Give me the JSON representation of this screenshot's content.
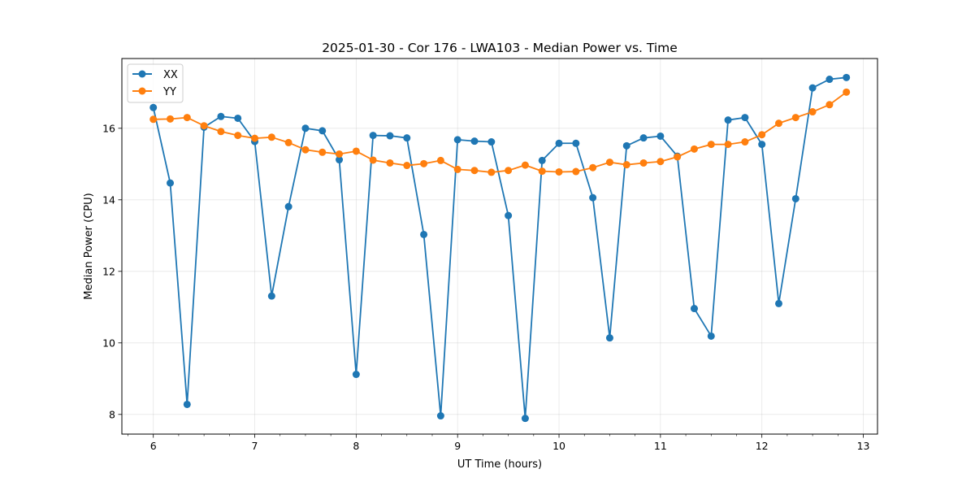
{
  "chart_data": {
    "type": "line",
    "title": "2025-01-30 - Cor 176 - LWA103 - Median Power vs. Time",
    "xlabel": "UT Time (hours)",
    "ylabel": "Median Power (CPU)",
    "xlim": [
      5.69,
      13.14
    ],
    "ylim": [
      7.45,
      17.95
    ],
    "x_ticks": [
      6,
      7,
      8,
      9,
      10,
      11,
      12,
      13
    ],
    "x_tick_labels": [
      "6",
      "7",
      "8",
      "9",
      "10",
      "11",
      "12",
      "13"
    ],
    "x_minor_step": 0.25,
    "y_ticks": [
      8,
      10,
      12,
      14,
      16
    ],
    "y_tick_labels": [
      "8",
      "10",
      "12",
      "14",
      "16"
    ],
    "grid": true,
    "legend_position": "top-left",
    "x": [
      6.0,
      6.1667,
      6.3333,
      6.5,
      6.6667,
      6.8333,
      7.0,
      7.1667,
      7.3333,
      7.5,
      7.6667,
      7.8333,
      8.0,
      8.1667,
      8.3333,
      8.5,
      8.6667,
      8.8333,
      9.0,
      9.1667,
      9.3333,
      9.5,
      9.6667,
      9.8333,
      10.0,
      10.1667,
      10.3333,
      10.5,
      10.6667,
      10.8333,
      11.0,
      11.1667,
      11.3333,
      11.5,
      11.6667,
      11.8333,
      12.0,
      12.1667,
      12.3333,
      12.5,
      12.6667,
      12.8333
    ],
    "series": [
      {
        "name": "XX",
        "color": "#1f77b4",
        "values": [
          16.58,
          14.47,
          8.28,
          16.03,
          16.33,
          16.28,
          15.63,
          11.31,
          13.81,
          16.0,
          15.93,
          15.12,
          9.12,
          15.8,
          15.79,
          15.73,
          13.03,
          7.96,
          15.68,
          15.64,
          15.62,
          13.56,
          7.89,
          15.1,
          15.58,
          15.58,
          14.06,
          10.14,
          15.51,
          15.73,
          15.78,
          15.22,
          10.96,
          10.19,
          16.23,
          16.3,
          15.55,
          11.1,
          14.03,
          17.13,
          17.37,
          17.42
        ]
      },
      {
        "name": "YY",
        "color": "#ff7f0e",
        "values": [
          16.25,
          16.26,
          16.3,
          16.07,
          15.91,
          15.8,
          15.72,
          15.75,
          15.6,
          15.4,
          15.33,
          15.28,
          15.36,
          15.11,
          15.03,
          14.96,
          15.01,
          15.1,
          14.85,
          14.82,
          14.77,
          14.82,
          14.97,
          14.8,
          14.78,
          14.79,
          14.9,
          15.05,
          14.98,
          15.03,
          15.07,
          15.2,
          15.42,
          15.55,
          15.55,
          15.62,
          15.82,
          16.14,
          16.3,
          16.46,
          16.66,
          17.01
        ]
      }
    ]
  }
}
